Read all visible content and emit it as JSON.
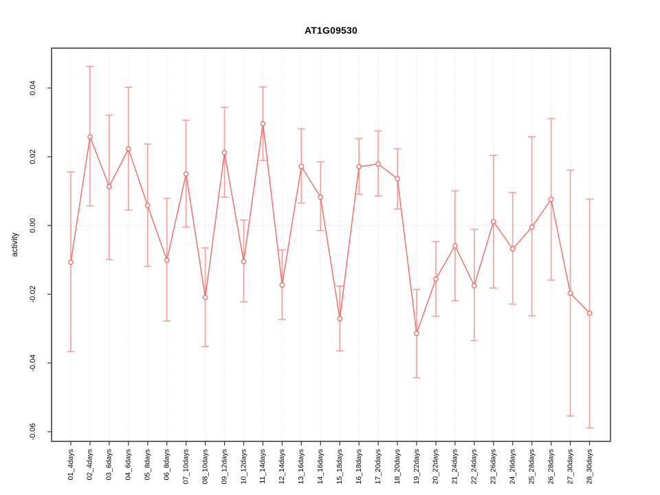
{
  "figure": {
    "title": "AT1G09530",
    "ylabel": "activity"
  },
  "chart_data": {
    "type": "line",
    "title": "AT1G09530",
    "xlabel": "",
    "ylabel": "activity",
    "legend": "none",
    "grid": "vertical dotted gridline at every category; horizontal dotted line at y=0 only",
    "marker": "open-circle",
    "error_bars": true,
    "categories": [
      "01_4days",
      "02_4days",
      "03_6days",
      "04_6days",
      "05_8days",
      "06_8days",
      "07_10days",
      "08_10days",
      "09_12days",
      "10_12days",
      "11_14days",
      "12_14days",
      "13_16days",
      "14_16days",
      "15_18days",
      "16_18days",
      "17_20days",
      "18_20days",
      "19_22days",
      "20_22days",
      "21_24days",
      "22_24days",
      "23_26days",
      "24_26days",
      "25_28days",
      "26_28days",
      "27_30days",
      "28_30days"
    ],
    "series": [
      {
        "name": "activity",
        "values": [
          -0.0107,
          0.0258,
          0.0113,
          0.0223,
          0.0058,
          -0.0101,
          0.015,
          -0.0209,
          0.0212,
          -0.0105,
          0.0296,
          -0.0173,
          0.0172,
          0.0082,
          -0.0271,
          0.0171,
          0.0179,
          0.0136,
          -0.0314,
          -0.0156,
          -0.0059,
          -0.0175,
          0.0011,
          -0.0068,
          -0.0005,
          0.0076,
          -0.0197,
          -0.0255
        ],
        "error_lower": [
          -0.0367,
          0.0057,
          -0.0099,
          0.0045,
          -0.0119,
          -0.0278,
          -0.0005,
          -0.0352,
          0.0082,
          -0.0222,
          0.0189,
          -0.0273,
          0.0065,
          -0.0015,
          -0.0365,
          0.0091,
          0.0086,
          0.0048,
          -0.0443,
          -0.0264,
          -0.0219,
          -0.0335,
          -0.0182,
          -0.0229,
          -0.0263,
          -0.0159,
          -0.0554,
          -0.0589
        ],
        "error_upper": [
          0.0156,
          0.0463,
          0.0321,
          0.0402,
          0.0237,
          0.0079,
          0.0306,
          -0.0065,
          0.0344,
          0.0016,
          0.0403,
          -0.0071,
          0.0281,
          0.0185,
          -0.0176,
          0.0253,
          0.0275,
          0.0223,
          -0.0186,
          -0.0047,
          0.0101,
          -0.0011,
          0.0204,
          0.0096,
          0.0258,
          0.0311,
          0.0161,
          0.0077
        ]
      }
    ],
    "yticks": [
      {
        "value": 0.04,
        "label": "0.04"
      },
      {
        "value": 0.02,
        "label": "0.02"
      },
      {
        "value": 0.0,
        "label": "0.00"
      },
      {
        "value": -0.02,
        "label": "-0.02"
      },
      {
        "value": -0.04,
        "label": "-0.04"
      },
      {
        "value": -0.06,
        "label": "-0.06"
      }
    ],
    "ylim": [
      -0.063,
      0.0515
    ],
    "colors": {
      "line": "#f4685f",
      "error_bar": "#f9a09a",
      "grid": "#dcdcdc",
      "zero_line": "#d6d6d6",
      "frame": "#545454",
      "tick": "#333333",
      "text": "#000000"
    }
  }
}
